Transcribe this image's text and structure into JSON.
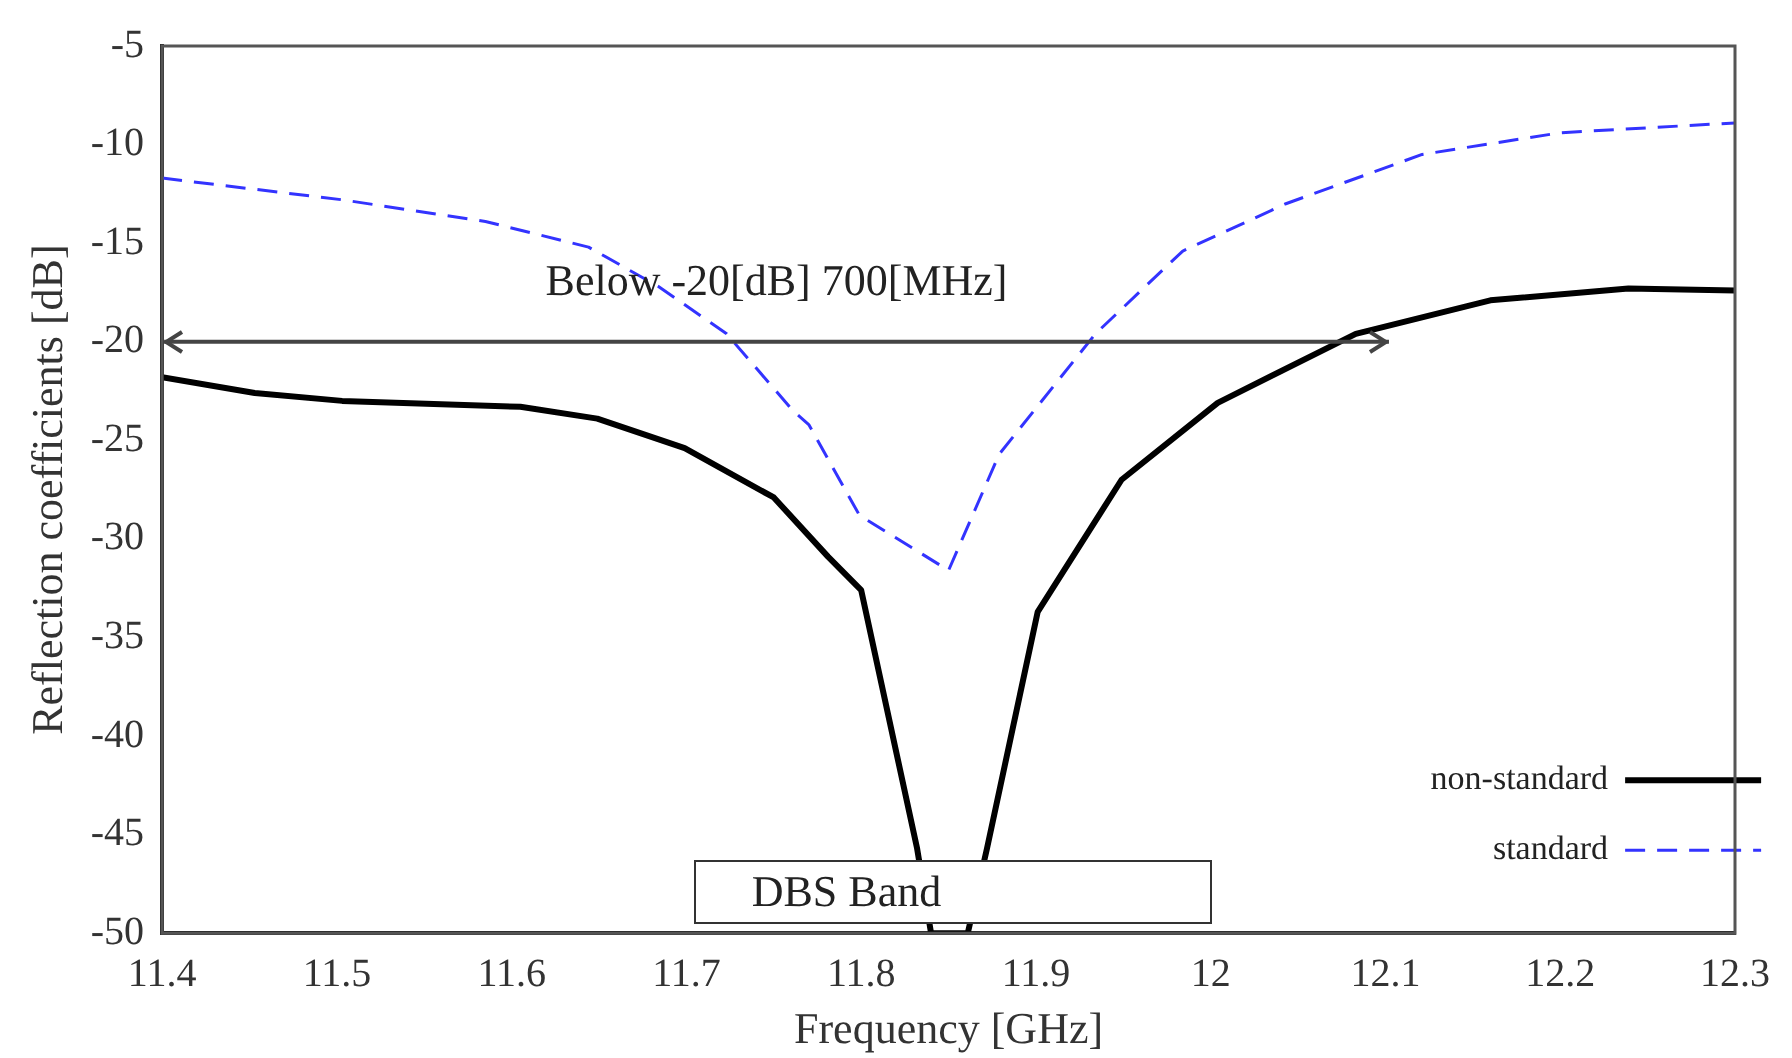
{
  "chart_data": {
    "type": "line",
    "xlabel": "Frequency [GHz]",
    "ylabel": "Reflection coefficients [dB]",
    "xlim": [
      11.4,
      12.3
    ],
    "xticks": [
      11.4,
      11.5,
      11.6,
      11.7,
      11.8,
      11.9,
      12,
      12.1,
      12.2,
      12.3
    ],
    "ylim": [
      -50,
      -5
    ],
    "yticks": [
      -50,
      -45,
      -40,
      -35,
      -30,
      -25,
      -20,
      -15,
      -10,
      -5
    ],
    "grid": false,
    "legend": "bottom right",
    "marker": "none",
    "annotations": [
      "DBS Band"
    ],
    "ref_lines": [
      {
        "axis": "y",
        "value": -20,
        "label": "Below -20[dB] 700[MHz]",
        "color": "#444444",
        "line_style": "solid"
      }
    ],
    "series": [
      {
        "name": "non-standard",
        "color": "#000000",
        "line_style": "solid",
        "x": [
          11.4,
          11.453,
          11.503,
          11.605,
          11.649,
          11.699,
          11.75,
          11.781,
          11.8,
          11.832,
          11.84,
          11.861,
          11.872,
          11.901,
          11.949,
          12.004,
          12.083,
          12.16,
          12.239,
          12.3
        ],
        "values": [
          -21.8,
          -22.6,
          -23.0,
          -23.3,
          -23.9,
          -25.4,
          -27.9,
          -30.9,
          -32.6,
          -45.7,
          -50,
          -50,
          -45.7,
          -33.7,
          -27.0,
          -23.1,
          -19.6,
          -17.9,
          -17.3,
          -17.4
        ]
      },
      {
        "name": "standard",
        "color": "#3333ff",
        "line_style": "dashed",
        "x": [
          11.4,
          11.503,
          11.585,
          11.644,
          11.684,
          11.723,
          11.761,
          11.77,
          11.799,
          11.85,
          11.879,
          11.934,
          11.984,
          12.043,
          12.121,
          12.2,
          12.3
        ],
        "values": [
          -11.7,
          -12.8,
          -13.9,
          -15.2,
          -17.2,
          -19.6,
          -23.5,
          -24.2,
          -28.8,
          -31.6,
          -25.7,
          -19.6,
          -15.4,
          -13.0,
          -10.5,
          -9.4,
          -8.9
        ]
      }
    ]
  }
}
